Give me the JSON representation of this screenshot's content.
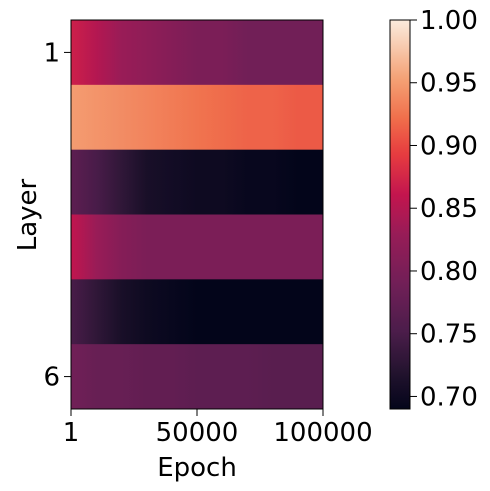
{
  "chart_data": {
    "type": "heatmap",
    "title": "",
    "xlabel": "Epoch",
    "ylabel": "Layer",
    "x_range": [
      1,
      100000
    ],
    "x_ticks": [
      {
        "value": 1,
        "label": "1"
      },
      {
        "value": 50000,
        "label": "50000"
      },
      {
        "value": 100000,
        "label": "100000"
      }
    ],
    "y_ticks": [
      {
        "row": 1,
        "label": "1"
      },
      {
        "row": 6,
        "label": "6"
      }
    ],
    "colormap": "rocket",
    "color_range": [
      0.69,
      1.0
    ],
    "colorbar": {
      "ticks": [
        {
          "value": 1.0,
          "label": "1.00"
        },
        {
          "value": 0.95,
          "label": "0.95"
        },
        {
          "value": 0.9,
          "label": "0.90"
        },
        {
          "value": 0.85,
          "label": "0.85"
        },
        {
          "value": 0.8,
          "label": "0.80"
        },
        {
          "value": 0.75,
          "label": "0.75"
        },
        {
          "value": 0.7,
          "label": "0.70"
        }
      ]
    },
    "epochs": [
      1,
      10000,
      20000,
      30000,
      40000,
      50000,
      60000,
      70000,
      80000,
      90000,
      100000
    ],
    "rows": [
      {
        "layer": 1,
        "values": [
          0.87,
          0.85,
          0.83,
          0.82,
          0.81,
          0.8,
          0.8,
          0.79,
          0.79,
          0.79,
          0.79
        ]
      },
      {
        "layer": 2,
        "values": [
          0.95,
          0.945,
          0.94,
          0.935,
          0.93,
          0.925,
          0.92,
          0.915,
          0.915,
          0.91,
          0.91
        ]
      },
      {
        "layer": 3,
        "values": [
          0.77,
          0.75,
          0.73,
          0.71,
          0.705,
          0.7,
          0.7,
          0.695,
          0.695,
          0.69,
          0.69
        ]
      },
      {
        "layer": 4,
        "values": [
          0.86,
          0.83,
          0.81,
          0.8,
          0.8,
          0.8,
          0.8,
          0.8,
          0.8,
          0.8,
          0.8
        ]
      },
      {
        "layer": 5,
        "values": [
          0.75,
          0.73,
          0.71,
          0.7,
          0.695,
          0.69,
          0.69,
          0.69,
          0.69,
          0.69,
          0.69
        ]
      },
      {
        "layer": 6,
        "values": [
          0.79,
          0.78,
          0.78,
          0.775,
          0.775,
          0.77,
          0.77,
          0.77,
          0.765,
          0.765,
          0.765
        ]
      }
    ]
  }
}
